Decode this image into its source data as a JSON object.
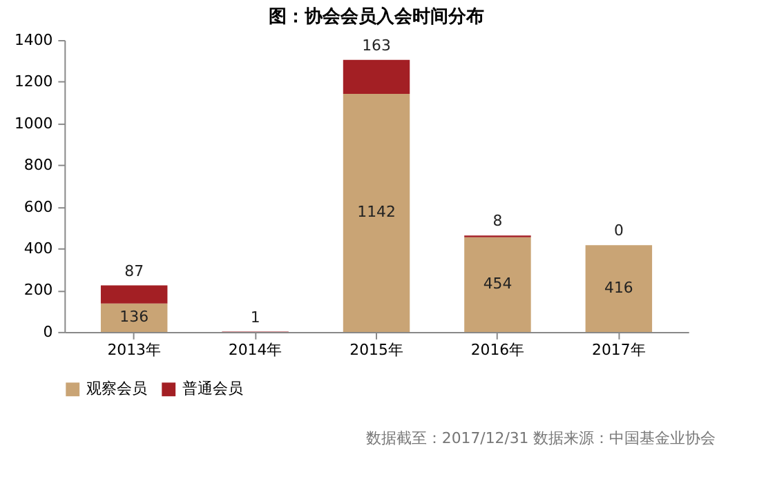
{
  "chart_data": {
    "type": "bar",
    "title": "图：协会会员入会时间分布",
    "categories": [
      "2013年",
      "2014年",
      "2015年",
      "2016年",
      "2017年"
    ],
    "stacked": true,
    "series": [
      {
        "name": "观察会员",
        "color": "#c9a475",
        "values": [
          136,
          0,
          1142,
          454,
          416
        ],
        "value_labels": [
          "136",
          null,
          "1142",
          "454",
          "416"
        ]
      },
      {
        "name": "普通会员",
        "color": "#a31f24",
        "values": [
          87,
          1,
          163,
          8,
          0
        ],
        "value_labels": [
          "87",
          "1",
          "163",
          "8",
          "0"
        ]
      }
    ],
    "ylim": [
      0,
      1400
    ],
    "yticks": [
      0,
      200,
      400,
      600,
      800,
      1000,
      1200,
      1400
    ],
    "grid": false,
    "legend": "bottom",
    "annotations": [
      "数据截至：2017/12/31",
      "数据来源：中国基金业协会"
    ]
  }
}
